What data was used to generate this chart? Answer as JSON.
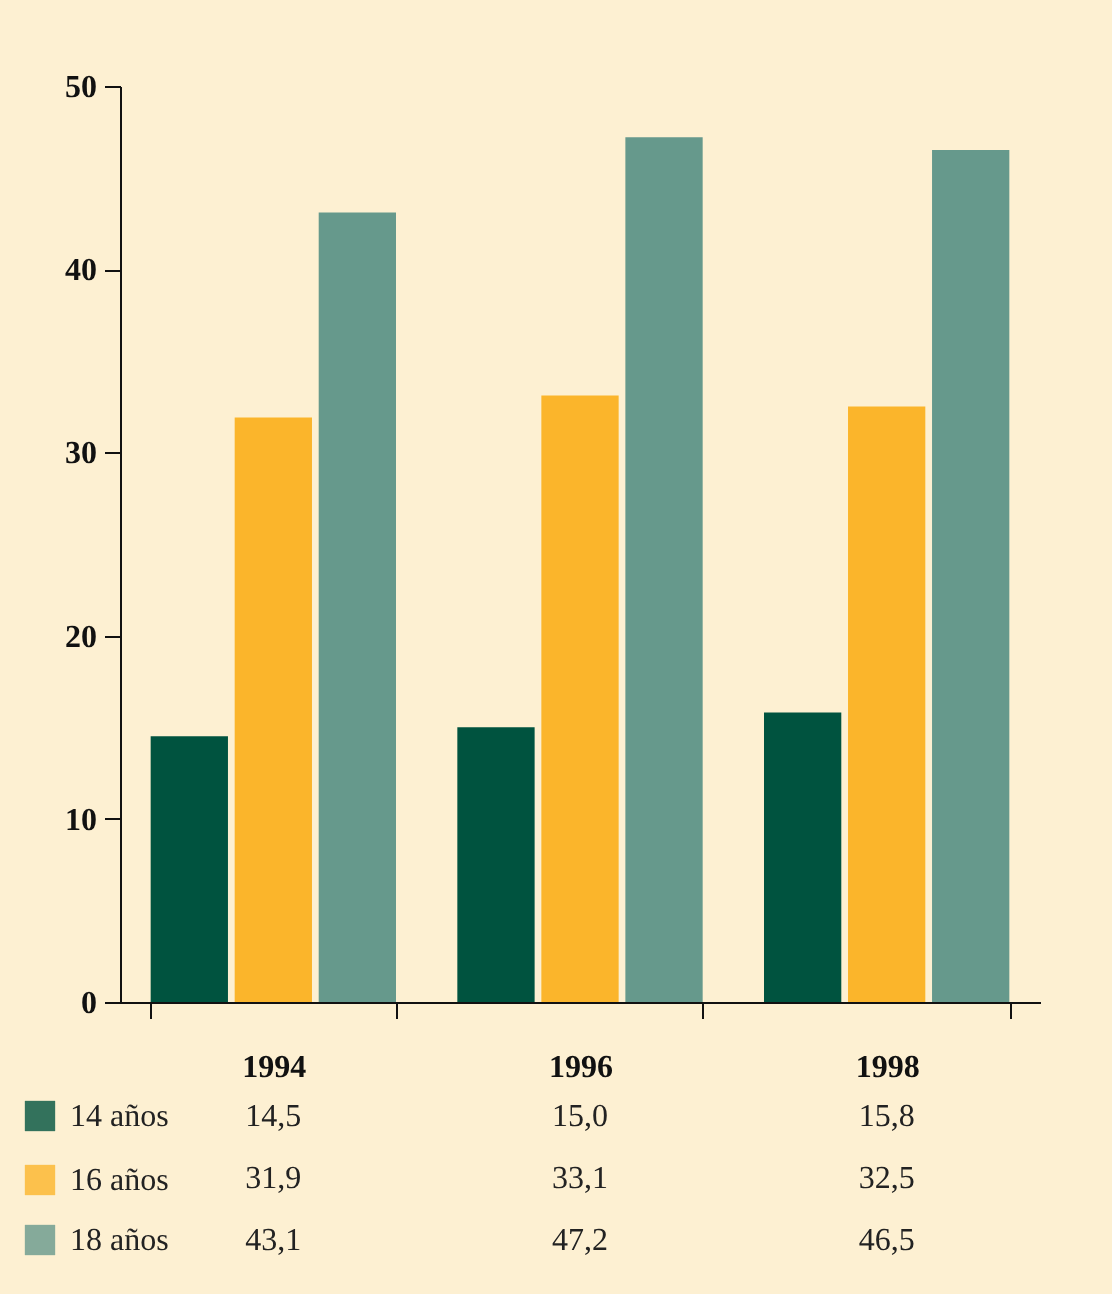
{
  "chart_data": {
    "type": "bar",
    "categories": [
      "1994",
      "1996",
      "1998"
    ],
    "series": [
      {
        "name": "14 años",
        "color": "#00533f",
        "values": [
          14.5,
          15.0,
          15.8
        ],
        "value_labels": [
          "14,5",
          "15,0",
          "15,8"
        ]
      },
      {
        "name": "16 años",
        "color": "#fbb52b",
        "values": [
          31.9,
          33.1,
          32.5
        ],
        "value_labels": [
          "31,9",
          "33,1",
          "32,5"
        ]
      },
      {
        "name": "18 años",
        "color": "#66998c",
        "values": [
          43.1,
          47.2,
          46.5
        ],
        "value_labels": [
          "43,1",
          "47,2",
          "46,5"
        ]
      }
    ],
    "ylim": [
      0,
      50
    ],
    "yticks": [
      0,
      10,
      20,
      30,
      40,
      50
    ],
    "grid": false,
    "legend": "bottom"
  }
}
